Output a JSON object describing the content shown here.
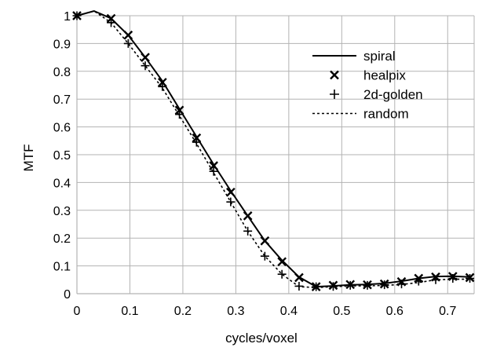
{
  "chart_data": {
    "type": "line",
    "title": "",
    "xlabel": "cycles/voxel",
    "ylabel": "MTF",
    "xlim": [
      0,
      0.75
    ],
    "ylim": [
      0,
      1
    ],
    "xticks": [
      "0",
      "0.1",
      "0.2",
      "0.3",
      "0.4",
      "0.5",
      "0.6",
      "0.7"
    ],
    "yticks": [
      "0",
      "0.1",
      "0.2",
      "0.3",
      "0.4",
      "0.5",
      "0.6",
      "0.7",
      "0.8",
      "0.9",
      "1"
    ],
    "grid": true,
    "legend_position": "top-right",
    "series": [
      {
        "name": "spiral",
        "style": "solid-line",
        "color": "#000000",
        "x": [
          0,
          0.0323,
          0.0645,
          0.0968,
          0.129,
          0.1613,
          0.1935,
          0.2258,
          0.2581,
          0.2903,
          0.3226,
          0.3548,
          0.3871,
          0.4194,
          0.4516,
          0.4839,
          0.5161,
          0.5484,
          0.5806,
          0.6129,
          0.6452,
          0.6774,
          0.7097,
          0.7419
        ],
        "y": [
          1.0,
          1.04,
          0.99,
          0.93,
          0.85,
          0.765,
          0.665,
          0.565,
          0.465,
          0.37,
          0.28,
          0.19,
          0.12,
          0.06,
          0.025,
          0.028,
          0.032,
          0.033,
          0.037,
          0.045,
          0.055,
          0.062,
          0.063,
          0.06
        ]
      },
      {
        "name": "healpix",
        "style": "x-marker",
        "color": "#000000",
        "x": [
          0,
          0.0645,
          0.0968,
          0.129,
          0.1613,
          0.1935,
          0.2258,
          0.2581,
          0.2903,
          0.3226,
          0.3548,
          0.3871,
          0.4194,
          0.4516,
          0.4839,
          0.5161,
          0.5484,
          0.5806,
          0.6129,
          0.6452,
          0.6774,
          0.7097,
          0.7419
        ],
        "y": [
          1.0,
          0.99,
          0.93,
          0.85,
          0.76,
          0.66,
          0.56,
          0.46,
          0.365,
          0.28,
          0.19,
          0.115,
          0.058,
          0.025,
          0.03,
          0.033,
          0.032,
          0.035,
          0.043,
          0.055,
          0.06,
          0.062,
          0.058
        ]
      },
      {
        "name": "2d-golden",
        "style": "plus-marker",
        "color": "#000000",
        "x": [
          0,
          0.0645,
          0.0968,
          0.129,
          0.1613,
          0.1935,
          0.2258,
          0.2581,
          0.2903,
          0.3226,
          0.3548,
          0.3871,
          0.4194,
          0.4516,
          0.4839,
          0.5161,
          0.5484,
          0.5806,
          0.6129,
          0.6452,
          0.6774,
          0.7097,
          0.7419
        ],
        "y": [
          1.0,
          0.975,
          0.9,
          0.82,
          0.745,
          0.645,
          0.545,
          0.44,
          0.33,
          0.225,
          0.135,
          0.07,
          0.027,
          0.025,
          0.026,
          0.03,
          0.03,
          0.032,
          0.035,
          0.045,
          0.05,
          0.055,
          0.055
        ]
      },
      {
        "name": "random",
        "style": "dashed-line",
        "color": "#000000",
        "x": [
          0,
          0.0323,
          0.0645,
          0.0968,
          0.129,
          0.1613,
          0.1935,
          0.2258,
          0.2581,
          0.2903,
          0.3226,
          0.3548,
          0.3871,
          0.4194,
          0.4516,
          0.4839,
          0.5161,
          0.5484,
          0.5806,
          0.6129,
          0.6452,
          0.6774,
          0.7097,
          0.7419
        ],
        "y": [
          1.0,
          1.03,
          0.975,
          0.9,
          0.82,
          0.74,
          0.64,
          0.54,
          0.435,
          0.33,
          0.225,
          0.135,
          0.07,
          0.025,
          0.022,
          0.025,
          0.028,
          0.028,
          0.03,
          0.033,
          0.04,
          0.05,
          0.052,
          0.052
        ]
      }
    ]
  }
}
